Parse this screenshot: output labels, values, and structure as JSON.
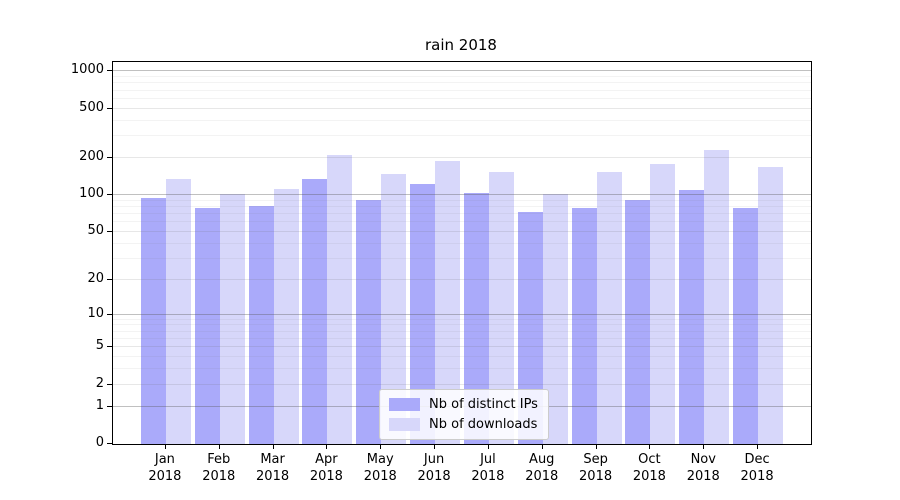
{
  "chart_data": {
    "type": "bar",
    "title": "rain 2018",
    "scale": "log1p",
    "grid": true,
    "legend_position": "lower center",
    "categories": [
      "Jan 2018",
      "Feb 2018",
      "Mar 2018",
      "Apr 2018",
      "May 2018",
      "Jun 2018",
      "Jul 2018",
      "Aug 2018",
      "Sep 2018",
      "Oct 2018",
      "Nov 2018",
      "Dec 2018"
    ],
    "series": [
      {
        "name": "Nb of distinct IPs",
        "color": "#aaaafa",
        "values": [
          95,
          78,
          82,
          134,
          91,
          124,
          104,
          73,
          79,
          91,
          110,
          78
        ]
      },
      {
        "name": "Nb of downloads",
        "color": "#d7d7fa",
        "values": [
          135,
          102,
          112,
          210,
          147,
          190,
          153,
          103,
          154,
          178,
          230,
          168
        ]
      }
    ],
    "y_ticks": [
      0,
      1,
      2,
      5,
      10,
      20,
      50,
      100,
      200,
      500,
      1000
    ],
    "y_major_decades": [
      1,
      10,
      100,
      1000
    ],
    "y_minor_ticks": [
      3,
      4,
      6,
      7,
      8,
      9,
      30,
      40,
      60,
      70,
      80,
      90,
      300,
      400,
      600,
      700,
      800,
      900
    ],
    "ylim": [
      0,
      1190
    ],
    "xlabel": "",
    "ylabel": ""
  },
  "legend": {
    "items": [
      {
        "label": "Nb of distinct IPs"
      },
      {
        "label": "Nb of downloads"
      }
    ]
  }
}
